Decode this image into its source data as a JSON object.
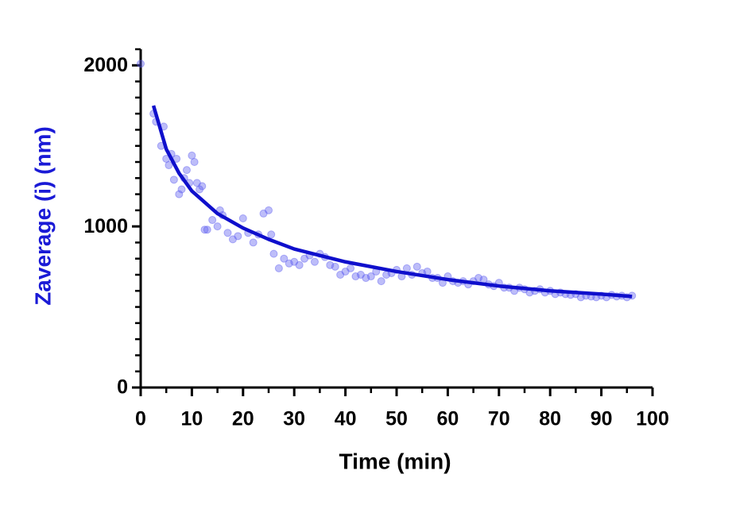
{
  "chart_data": {
    "type": "scatter",
    "xlabel": "Time (min)",
    "ylabel": "Zaverage (i) (nm)",
    "xlim": [
      0,
      100
    ],
    "ylim": [
      0,
      2100
    ],
    "xticks": [
      0,
      10,
      20,
      30,
      40,
      50,
      60,
      70,
      80,
      90,
      100
    ],
    "yticks": [
      0,
      1000,
      2000
    ],
    "xminorticks": [
      5,
      15,
      25,
      35,
      45,
      55,
      65,
      75,
      85,
      95
    ],
    "yminorticks": [
      100,
      200,
      300,
      400,
      500,
      600,
      700,
      800,
      900,
      1100,
      1200,
      1300,
      1400,
      1500,
      1600,
      1700,
      1800,
      1900,
      2100
    ],
    "axis_color": "#000000",
    "ylabel_color": "#1a1ad6",
    "series": [
      {
        "type": "scatter",
        "color": "#5a5af0",
        "x": [
          0,
          2.5,
          3,
          4,
          4.5,
          5,
          5.5,
          6,
          6.5,
          7,
          7.5,
          8,
          8.5,
          9,
          9.5,
          10,
          10.5,
          11,
          11.5,
          12,
          12.5,
          13,
          14,
          15,
          15.5,
          16,
          17,
          18,
          19,
          20,
          21,
          22,
          23,
          24,
          25,
          25.5,
          26,
          27,
          28,
          29,
          30,
          31,
          32,
          33,
          34,
          35,
          36,
          37,
          38,
          39,
          40,
          41,
          42,
          43,
          44,
          45,
          46,
          47,
          48,
          49,
          50,
          51,
          52,
          53,
          54,
          55,
          56,
          57,
          58,
          59,
          60,
          61,
          62,
          63,
          64,
          65,
          66,
          67,
          68,
          69,
          70,
          71,
          72,
          73,
          74,
          75,
          76,
          77,
          78,
          79,
          80,
          81,
          82,
          83,
          84,
          85,
          86,
          87,
          88,
          89,
          90,
          91,
          92,
          93,
          94,
          95,
          96
        ],
        "values": [
          2010,
          1700,
          1650,
          1500,
          1620,
          1420,
          1380,
          1450,
          1290,
          1420,
          1200,
          1230,
          1300,
          1350,
          1270,
          1440,
          1400,
          1270,
          1230,
          1250,
          980,
          980,
          1040,
          1000,
          1100,
          1070,
          960,
          920,
          940,
          1050,
          960,
          900,
          950,
          1080,
          1100,
          950,
          830,
          740,
          800,
          770,
          780,
          760,
          800,
          820,
          780,
          830,
          810,
          760,
          750,
          700,
          720,
          740,
          690,
          700,
          680,
          690,
          720,
          660,
          700,
          710,
          730,
          690,
          740,
          700,
          750,
          710,
          720,
          680,
          680,
          650,
          690,
          660,
          650,
          660,
          640,
          660,
          680,
          670,
          640,
          630,
          650,
          620,
          620,
          600,
          620,
          610,
          590,
          600,
          610,
          590,
          600,
          580,
          590,
          580,
          575,
          580,
          560,
          570,
          565,
          560,
          570,
          560,
          575,
          565,
          570,
          560,
          570
        ]
      },
      {
        "type": "line",
        "color": "#0f0fcc",
        "x": [
          2.5,
          5,
          7.5,
          10,
          15,
          20,
          25,
          30,
          40,
          50,
          60,
          70,
          80,
          90,
          96
        ],
        "values": [
          1750,
          1480,
          1330,
          1220,
          1080,
          990,
          920,
          860,
          780,
          720,
          670,
          630,
          600,
          580,
          565
        ]
      }
    ]
  }
}
